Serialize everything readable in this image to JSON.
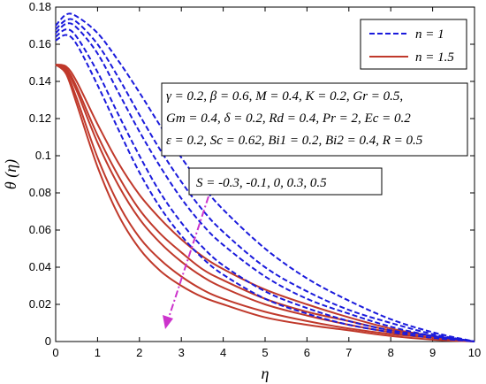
{
  "chart_data": {
    "type": "line",
    "title": "",
    "xlabel": "η",
    "ylabel": "θ (η)",
    "xlim": [
      0,
      10
    ],
    "ylim": [
      0,
      0.18
    ],
    "xticks": [
      0,
      1,
      2,
      3,
      4,
      5,
      6,
      7,
      8,
      9,
      10
    ],
    "yticks": [
      0,
      0.02,
      0.04,
      0.06,
      0.08,
      0.1,
      0.12,
      0.14,
      0.16,
      0.18
    ],
    "xtick_labels": [
      "0",
      "1",
      "2",
      "3",
      "4",
      "5",
      "6",
      "7",
      "8",
      "9",
      "10"
    ],
    "ytick_labels": [
      "0",
      "0.02",
      "0.04",
      "0.06",
      "0.08",
      "0.1",
      "0.12",
      "0.14",
      "0.16",
      "0.18"
    ],
    "grid": false,
    "legend_position": "top-right",
    "legend": [
      {
        "label": "n = 1",
        "color": "#1a1adc",
        "style": "dashed"
      },
      {
        "label": "n = 1.5",
        "color": "#c0392b",
        "style": "solid"
      }
    ],
    "parameter_lines": [
      "γ = 0.2, β = 0.6, M = 0.4, K = 0.2, Gr = 0.5,",
      "Gm = 0.4, δ = 0.2, Rd = 0.4, Pr = 2, Ec = 0.2",
      "ε = 0.2, Sc = 0.62, Bi1 = 0.2, Bi2 = 0.4, R = 0.5"
    ],
    "s_annotation": "S = -0.3, -0.1, 0, 0.3, 0.5",
    "arrow_color": "#cc33cc",
    "series": [
      {
        "name": "n = 1",
        "color": "#1a1adc",
        "style": "dashed",
        "S": -0.3,
        "x": [
          0,
          0.25,
          0.5,
          1,
          1.5,
          2,
          2.5,
          3,
          3.5,
          4,
          5,
          6,
          7,
          8,
          9,
          10
        ],
        "y": [
          0.17,
          0.176,
          0.175,
          0.166,
          0.151,
          0.134,
          0.116,
          0.099,
          0.084,
          0.071,
          0.05,
          0.034,
          0.022,
          0.012,
          0.005,
          0.0
        ]
      },
      {
        "name": "n = 1",
        "color": "#1a1adc",
        "style": "dashed",
        "S": -0.1,
        "x": [
          0,
          0.25,
          0.5,
          1,
          1.5,
          2,
          2.5,
          3,
          3.5,
          4,
          5,
          6,
          7,
          8,
          9,
          10
        ],
        "y": [
          0.168,
          0.173,
          0.172,
          0.16,
          0.142,
          0.122,
          0.103,
          0.086,
          0.071,
          0.059,
          0.04,
          0.027,
          0.017,
          0.01,
          0.004,
          0.0
        ]
      },
      {
        "name": "n = 1",
        "color": "#1a1adc",
        "style": "dashed",
        "S": 0,
        "x": [
          0,
          0.25,
          0.5,
          1,
          1.5,
          2,
          2.5,
          3,
          3.5,
          4,
          5,
          6,
          7,
          8,
          9,
          10
        ],
        "y": [
          0.166,
          0.171,
          0.169,
          0.155,
          0.134,
          0.113,
          0.094,
          0.077,
          0.063,
          0.052,
          0.035,
          0.023,
          0.015,
          0.008,
          0.003,
          0.0
        ]
      },
      {
        "name": "n = 1",
        "color": "#1a1adc",
        "style": "dashed",
        "S": 0.3,
        "x": [
          0,
          0.25,
          0.5,
          1,
          1.5,
          2,
          2.5,
          3,
          3.5,
          4,
          5,
          6,
          7,
          8,
          9,
          10
        ],
        "y": [
          0.164,
          0.168,
          0.164,
          0.145,
          0.122,
          0.1,
          0.08,
          0.064,
          0.051,
          0.041,
          0.027,
          0.018,
          0.011,
          0.006,
          0.003,
          0.0
        ]
      },
      {
        "name": "n = 1",
        "color": "#1a1adc",
        "style": "dashed",
        "S": 0.5,
        "x": [
          0,
          0.25,
          0.5,
          1,
          1.5,
          2,
          2.5,
          3,
          3.5,
          4,
          5,
          6,
          7,
          8,
          9,
          10
        ],
        "y": [
          0.162,
          0.165,
          0.16,
          0.138,
          0.114,
          0.091,
          0.072,
          0.057,
          0.045,
          0.036,
          0.023,
          0.015,
          0.009,
          0.005,
          0.002,
          0.0
        ]
      },
      {
        "name": "n = 1.5",
        "color": "#c0392b",
        "style": "solid",
        "S": -0.3,
        "x": [
          0,
          0.25,
          0.5,
          1,
          1.5,
          2,
          2.5,
          3,
          3.5,
          4,
          5,
          6,
          7,
          8,
          9,
          10
        ],
        "y": [
          0.149,
          0.148,
          0.14,
          0.117,
          0.096,
          0.079,
          0.066,
          0.055,
          0.046,
          0.039,
          0.028,
          0.02,
          0.013,
          0.007,
          0.003,
          0.0
        ]
      },
      {
        "name": "n = 1.5",
        "color": "#c0392b",
        "style": "solid",
        "S": -0.1,
        "x": [
          0,
          0.25,
          0.5,
          1,
          1.5,
          2,
          2.5,
          3,
          3.5,
          4,
          5,
          6,
          7,
          8,
          9,
          10
        ],
        "y": [
          0.149,
          0.147,
          0.137,
          0.111,
          0.089,
          0.071,
          0.058,
          0.048,
          0.039,
          0.033,
          0.023,
          0.016,
          0.011,
          0.006,
          0.003,
          0.0
        ]
      },
      {
        "name": "n = 1.5",
        "color": "#c0392b",
        "style": "solid",
        "S": 0,
        "x": [
          0,
          0.25,
          0.5,
          1,
          1.5,
          2,
          2.5,
          3,
          3.5,
          4,
          5,
          6,
          7,
          8,
          9,
          10
        ],
        "y": [
          0.149,
          0.146,
          0.135,
          0.107,
          0.084,
          0.066,
          0.053,
          0.043,
          0.035,
          0.029,
          0.02,
          0.014,
          0.009,
          0.005,
          0.002,
          0.0
        ]
      },
      {
        "name": "n = 1.5",
        "color": "#c0392b",
        "style": "solid",
        "S": 0.3,
        "x": [
          0,
          0.25,
          0.5,
          1,
          1.5,
          2,
          2.5,
          3,
          3.5,
          4,
          5,
          6,
          7,
          8,
          9,
          10
        ],
        "y": [
          0.149,
          0.145,
          0.131,
          0.099,
          0.074,
          0.056,
          0.044,
          0.035,
          0.028,
          0.023,
          0.016,
          0.011,
          0.007,
          0.004,
          0.002,
          0.0
        ]
      },
      {
        "name": "n = 1.5",
        "color": "#c0392b",
        "style": "solid",
        "S": 0.5,
        "x": [
          0,
          0.25,
          0.5,
          1,
          1.5,
          2,
          2.5,
          3,
          3.5,
          4,
          5,
          6,
          7,
          8,
          9,
          10
        ],
        "y": [
          0.149,
          0.144,
          0.128,
          0.094,
          0.068,
          0.05,
          0.038,
          0.03,
          0.024,
          0.02,
          0.013,
          0.009,
          0.006,
          0.003,
          0.001,
          0.0
        ]
      }
    ]
  }
}
